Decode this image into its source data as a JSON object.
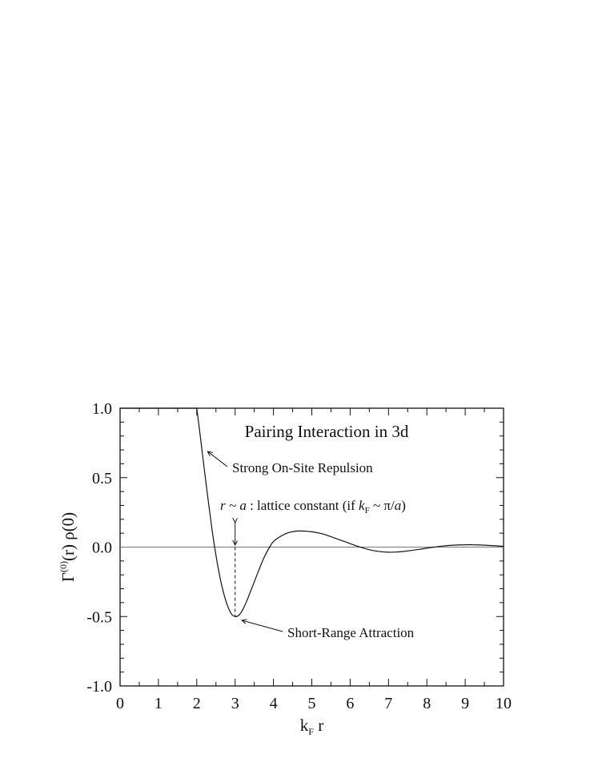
{
  "chart_data": {
    "type": "line",
    "title": "Pairing Interaction in 3d",
    "xlabel": {
      "main": "k",
      "sub": "F",
      "tail": " r"
    },
    "ylabel": {
      "prefix": "Γ",
      "sup": "(0)",
      "tail": "(r) ρ(0)"
    },
    "xlim": [
      0,
      10
    ],
    "ylim": [
      -1.0,
      1.0
    ],
    "xticks": [
      0,
      1,
      2,
      3,
      4,
      5,
      6,
      7,
      8,
      9,
      10
    ],
    "xtick_labels": [
      "0",
      "1",
      "2",
      "3",
      "4",
      "5",
      "6",
      "7",
      "8",
      "9",
      "10"
    ],
    "yticks": [
      -1.0,
      -0.5,
      0.0,
      0.5,
      1.0
    ],
    "ytick_labels": [
      "-1.0",
      "-0.5",
      "0.0",
      "0.5",
      "1.0"
    ],
    "grid": false,
    "series": [
      {
        "x": [
          2.0,
          2.1,
          2.2,
          2.3,
          2.4,
          2.5,
          2.6,
          2.7,
          2.8,
          2.9,
          3.0,
          3.1,
          3.2,
          3.3,
          3.4,
          3.5,
          3.6,
          3.7,
          3.8,
          3.9,
          4.0,
          4.2,
          4.4,
          4.6,
          4.8,
          5.0,
          5.2,
          5.4,
          5.6,
          5.8,
          6.0,
          6.2,
          6.4,
          6.6,
          6.8,
          7.0,
          7.2,
          7.4,
          7.6,
          7.8,
          8.0,
          8.2,
          8.4,
          8.6,
          8.8,
          9.0,
          9.2,
          9.4,
          9.6,
          9.8,
          10.0
        ],
        "y": [
          1.0,
          0.78,
          0.55,
          0.33,
          0.12,
          -0.06,
          -0.21,
          -0.33,
          -0.42,
          -0.48,
          -0.5,
          -0.49,
          -0.45,
          -0.39,
          -0.32,
          -0.25,
          -0.18,
          -0.11,
          -0.05,
          0.0,
          0.04,
          0.08,
          0.105,
          0.115,
          0.115,
          0.11,
          0.1,
          0.085,
          0.065,
          0.045,
          0.025,
          0.005,
          -0.012,
          -0.025,
          -0.033,
          -0.037,
          -0.036,
          -0.031,
          -0.024,
          -0.016,
          -0.008,
          0.0,
          0.007,
          0.012,
          0.015,
          0.017,
          0.017,
          0.015,
          0.012,
          0.009,
          0.005
        ]
      }
    ],
    "zero_line": 0.0,
    "annotations": [
      {
        "text": "Strong On-Site Repulsion",
        "arrow_to_x": 2.2,
        "arrow_to_y": 0.7
      },
      {
        "text_italic_1": "r ~ a",
        "text_1": " : lattice constant (if ",
        "text_italic_2": "k",
        "text_sub": "F",
        "text_2": " ~ π/",
        "text_italic_3": "a",
        "text_3": ")"
      },
      {
        "text": "Short-Range Attraction",
        "arrow_to_x": 3.05,
        "arrow_to_y": -0.51
      }
    ],
    "marker_x": 3.0
  }
}
